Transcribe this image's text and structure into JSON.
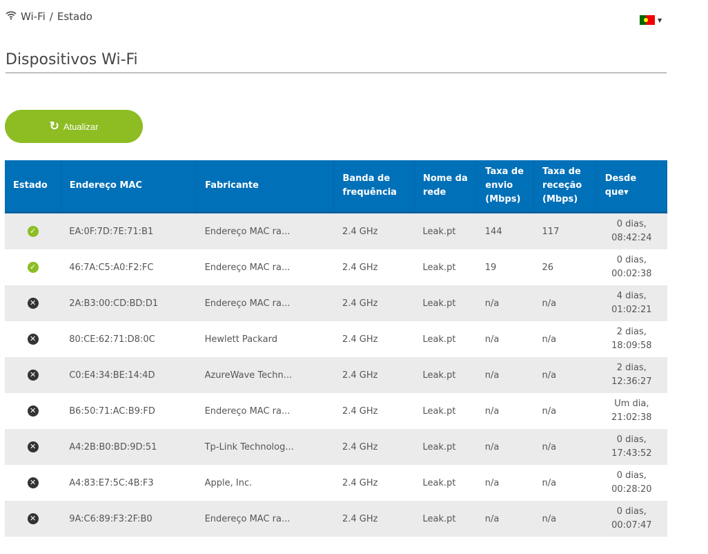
{
  "breadcrumb": {
    "section": "Wi-Fi",
    "separator": "/",
    "page": "Estado"
  },
  "title": "Dispositivos Wi-Fi",
  "refresh_label": "Atualizar",
  "headers": [
    "Estado",
    "Endereço MAC",
    "Fabricante",
    "Banda de frequência",
    "Nome da rede",
    "Taxa de envio (Mbps)",
    "Taxa de receção (Mbps)",
    "Desde que"
  ],
  "sort_indicator": "▾",
  "rows": [
    {
      "status": "connected",
      "mac": "EA:0F:7D:7E:71:B1",
      "vendor": "Endereço MAC ra...",
      "band": "2.4 GHz",
      "network": "Leak.pt",
      "tx": "144",
      "rx": "117",
      "since1": "0 dias,",
      "since2": "08:42:24"
    },
    {
      "status": "connected",
      "mac": "46:7A:C5:A0:F2:FC",
      "vendor": "Endereço MAC ra...",
      "band": "2.4 GHz",
      "network": "Leak.pt",
      "tx": "19",
      "rx": "26",
      "since1": "0 dias,",
      "since2": "00:02:38"
    },
    {
      "status": "disconnected",
      "mac": "2A:B3:00:CD:BD:D1",
      "vendor": "Endereço MAC ra...",
      "band": "2.4 GHz",
      "network": "Leak.pt",
      "tx": "n/a",
      "rx": "n/a",
      "since1": "4 dias,",
      "since2": "01:02:21"
    },
    {
      "status": "disconnected",
      "mac": "80:CE:62:71:D8:0C",
      "vendor": "Hewlett Packard",
      "band": "2.4 GHz",
      "network": "Leak.pt",
      "tx": "n/a",
      "rx": "n/a",
      "since1": "2 dias,",
      "since2": "18:09:58"
    },
    {
      "status": "disconnected",
      "mac": "C0:E4:34:BE:14:4D",
      "vendor": "AzureWave Techn...",
      "band": "2.4 GHz",
      "network": "Leak.pt",
      "tx": "n/a",
      "rx": "n/a",
      "since1": "2 dias,",
      "since2": "12:36:27"
    },
    {
      "status": "disconnected",
      "mac": "B6:50:71:AC:B9:FD",
      "vendor": "Endereço MAC ra...",
      "band": "2.4 GHz",
      "network": "Leak.pt",
      "tx": "n/a",
      "rx": "n/a",
      "since1": "Um dia,",
      "since2": "21:02:38"
    },
    {
      "status": "disconnected",
      "mac": "A4:2B:B0:BD:9D:51",
      "vendor": "Tp-Link Technolog...",
      "band": "2.4 GHz",
      "network": "Leak.pt",
      "tx": "n/a",
      "rx": "n/a",
      "since1": "0 dias,",
      "since2": "17:43:52"
    },
    {
      "status": "disconnected",
      "mac": "A4:83:E7:5C:4B:F3",
      "vendor": "Apple, Inc.",
      "band": "2.4 GHz",
      "network": "Leak.pt",
      "tx": "n/a",
      "rx": "n/a",
      "since1": "0 dias,",
      "since2": "00:28:20"
    },
    {
      "status": "disconnected",
      "mac": "9A:C6:89:F3:2F:B0",
      "vendor": "Endereço MAC ra...",
      "band": "2.4 GHz",
      "network": "Leak.pt",
      "tx": "n/a",
      "rx": "n/a",
      "since1": "0 dias,",
      "since2": "00:07:47"
    }
  ],
  "colors": {
    "header": "#0070b8",
    "accent": "#8dbd23"
  }
}
